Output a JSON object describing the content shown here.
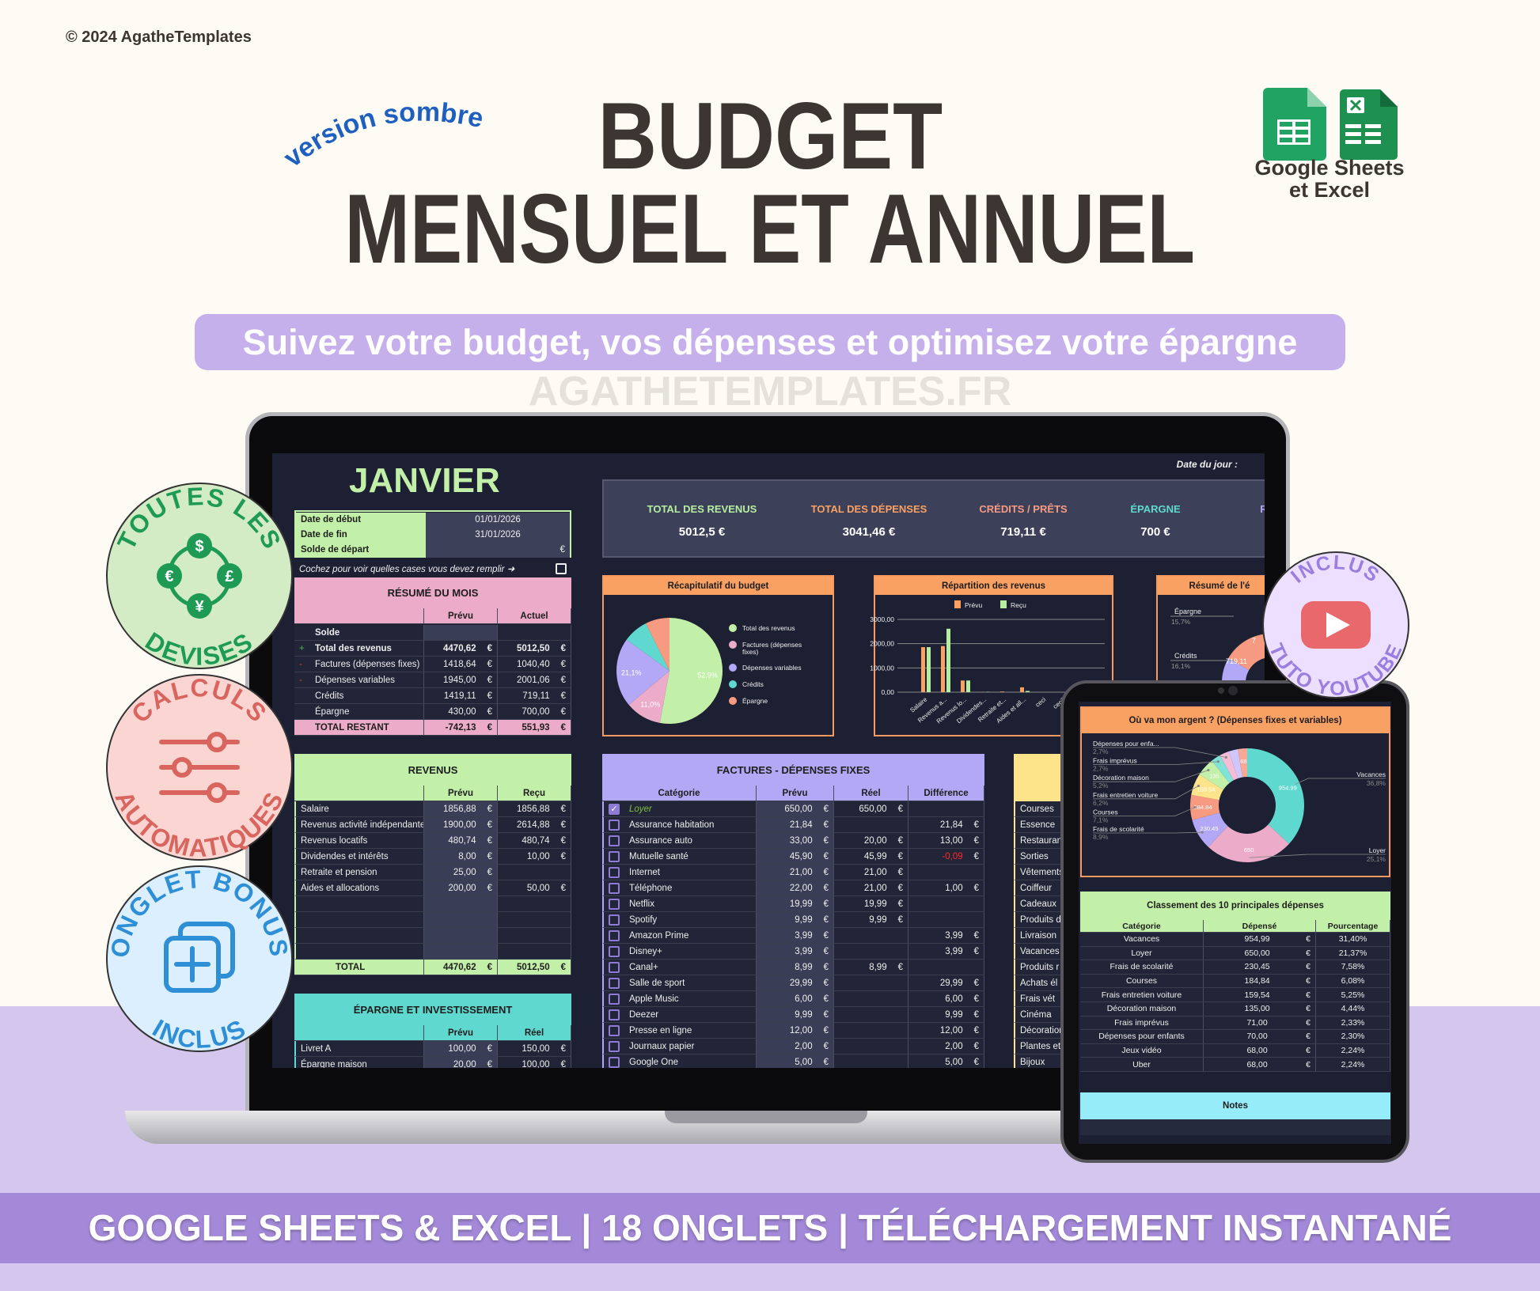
{
  "copyright": "© 2024 AgatheTemplates",
  "tagline_curved": "version sombre",
  "title_line1": "BUDGET",
  "title_line2": "MENSUEL ET ANNUEL",
  "logos_text": [
    "Google Sheets",
    "et Excel"
  ],
  "subtitle": "Suivez votre budget, vos dépenses et optimisez votre épargne",
  "banner": "GOOGLE SHEETS & EXCEL | 18 ONGLETS | TÉLÉCHARGEMENT INSTANTANÉ",
  "watermark": "AGATHETEMPLATES.FR",
  "badges": [
    {
      "top": "TOUTES LES",
      "bottom": "DEVISES",
      "icon": "currency-exchange-icon",
      "bg": "#d3ecc6",
      "fg": "#1f9a55",
      "symbols": [
        "$",
        "€",
        "£",
        "¥"
      ]
    },
    {
      "top": "CALCULS",
      "bottom": "AUTOMATIQUES",
      "icon": "sliders-icon",
      "bg": "#fbd5d2",
      "fg": "#d9655f"
    },
    {
      "top": "ONGLET BONUS",
      "bottom": "INCLUS",
      "icon": "add-copy-icon",
      "bg": "#dcefff",
      "fg": "#2e8fd6"
    },
    {
      "top": "INCLUS",
      "bottom": "TUTO YOUTUBE",
      "icon": "youtube-play-icon",
      "bg": "#ecdfff",
      "fg": "#9b7ee0"
    }
  ],
  "colors": {
    "sheet_bg": "#1d2032",
    "green": "#c3f0a8",
    "pink": "#ecacc9",
    "lavender": "#b3a8f5",
    "teal": "#5fd9cf",
    "orange": "#f9a063",
    "yellow": "#fde48a",
    "cyan": "#96ecf8"
  },
  "sheet": {
    "month": "JANVIER",
    "date_today_label": "Date du jour :",
    "dates": [
      {
        "label": "Date de début",
        "value": "01/01/2026"
      },
      {
        "label": "Date de fin",
        "value": "31/01/2026"
      },
      {
        "label": "Solde de départ",
        "value": "",
        "unit": "€"
      }
    ],
    "hint": "Cochez pour voir quelles cases vous devez remplir ➜",
    "currency": "€",
    "resume": {
      "title": "RÉSUMÉ DU MOIS",
      "cols": [
        "Prévu",
        "Actuel"
      ],
      "rows": [
        [
          "",
          "Solde",
          "",
          ""
        ],
        [
          "+",
          "Total des revenus",
          "4470,62",
          "5012,50"
        ],
        [
          "-",
          "Factures (dépenses fixes)",
          "1418,64",
          "1040,40"
        ],
        [
          "-",
          "Dépenses variables",
          "1945,00",
          "2001,06"
        ],
        [
          "",
          "Crédits",
          "1419,11",
          "719,11"
        ],
        [
          "",
          "Épargne",
          "430,00",
          "700,00"
        ]
      ],
      "total": [
        "TOTAL RESTANT",
        "-742,13",
        "551,93"
      ]
    },
    "kpis": [
      {
        "label": "TOTAL DES REVENUS",
        "value": "5012,5 €",
        "color": "#b5eea0"
      },
      {
        "label": "TOTAL DES DÉPENSES",
        "value": "3041,46 €",
        "color": "#f9a063"
      },
      {
        "label": "CRÉDITS / PRÊTS",
        "value": "719,11 €",
        "color": "#f79a82"
      },
      {
        "label": "ÉPARGNE",
        "value": "700 €",
        "color": "#5fd9cf"
      },
      {
        "label": "R",
        "value": "",
        "color": "#b3a8f5"
      }
    ],
    "revenus": {
      "title": "REVENUS",
      "cols": [
        "Prévu",
        "Reçu"
      ],
      "rows": [
        [
          "Salaire",
          "1856,88",
          "1856,88"
        ],
        [
          "Revenus activité indépendante",
          "1900,00",
          "2614,88"
        ],
        [
          "Revenus locatifs",
          "480,74",
          "480,74"
        ],
        [
          "Dividendes et intérêts",
          "8,00",
          "10,00"
        ],
        [
          "Retraite et pension",
          "25,00",
          ""
        ],
        [
          "Aides et allocations",
          "200,00",
          "50,00"
        ],
        [
          "",
          "",
          ""
        ],
        [
          "",
          "",
          ""
        ],
        [
          "",
          "",
          ""
        ],
        [
          "",
          "",
          ""
        ]
      ],
      "total": [
        "TOTAL",
        "4470,62",
        "5012,50"
      ]
    },
    "epargne": {
      "title": "ÉPARGNE ET INVESTISSEMENT",
      "cols": [
        "Prévu",
        "Réel"
      ],
      "rows": [
        [
          "Livret A",
          "100,00",
          "150,00"
        ],
        [
          "Épargne maison",
          "20,00",
          "100,00"
        ]
      ]
    },
    "factures": {
      "title": "FACTURES - DÉPENSES FIXES",
      "cols": [
        "Catégorie",
        "Prévu",
        "Réel",
        "Différence"
      ],
      "rows": [
        [
          true,
          "Loyer",
          "650,00",
          "650,00",
          ""
        ],
        [
          false,
          "Assurance habitation",
          "21,84",
          "",
          "21,84"
        ],
        [
          false,
          "Assurance auto",
          "33,00",
          "20,00",
          "13,00"
        ],
        [
          false,
          "Mutuelle santé",
          "45,90",
          "45,99",
          "-0,09"
        ],
        [
          false,
          "Internet",
          "21,00",
          "21,00",
          ""
        ],
        [
          false,
          "Téléphone",
          "22,00",
          "21,00",
          "1,00"
        ],
        [
          false,
          "Netflix",
          "19,99",
          "19,99",
          ""
        ],
        [
          false,
          "Spotify",
          "9,99",
          "9,99",
          ""
        ],
        [
          false,
          "Amazon Prime",
          "3,99",
          "",
          "3,99"
        ],
        [
          false,
          "Disney+",
          "3,99",
          "",
          "3,99"
        ],
        [
          false,
          "Canal+",
          "8,99",
          "8,99",
          ""
        ],
        [
          false,
          "Salle de sport",
          "29,99",
          "",
          "29,99"
        ],
        [
          false,
          "Apple Music",
          "6,00",
          "",
          "6,00"
        ],
        [
          false,
          "Deezer",
          "9,99",
          "",
          "9,99"
        ],
        [
          false,
          "Presse en ligne",
          "12,00",
          "",
          "12,00"
        ],
        [
          false,
          "Journaux papier",
          "2,00",
          "",
          "2,00"
        ],
        [
          false,
          "Google One",
          "5,00",
          "",
          "5,00"
        ]
      ]
    },
    "variables": [
      "Courses",
      "Essence",
      "Restaurant",
      "Sorties",
      "Vêtements",
      "Coiffeur",
      "Cadeaux",
      "Produits d",
      "Livraison",
      "Vacances",
      "Produits r",
      "Achats él",
      "Frais vét",
      "Cinéma",
      "Décoration",
      "Plantes et",
      "Bijoux"
    ]
  },
  "tablet": {
    "donut_title": "Où va mon argent ? (Dépenses fixes et variables)",
    "ranking_title": "Classement des 10 principales dépenses",
    "ranking_cols": [
      "Catégorie",
      "Dépensé",
      "Pourcentage"
    ],
    "ranking": [
      [
        "Vacances",
        "954,99",
        "31,40%"
      ],
      [
        "Loyer",
        "650,00",
        "21,37%"
      ],
      [
        "Frais de scolarité",
        "230,45",
        "7,58%"
      ],
      [
        "Courses",
        "184,84",
        "6,08%"
      ],
      [
        "Frais entretien voiture",
        "159,54",
        "5,25%"
      ],
      [
        "Décoration maison",
        "135,00",
        "4,44%"
      ],
      [
        "Frais imprévus",
        "71,00",
        "2,33%"
      ],
      [
        "Dépenses pour enfants",
        "70,00",
        "2,30%"
      ],
      [
        "Jeux vidéo",
        "68,00",
        "2,24%"
      ],
      [
        "Uber",
        "68,00",
        "2,24%"
      ]
    ],
    "notes_title": "Notes"
  },
  "chart_data": [
    {
      "type": "pie",
      "title": "Récapitulatif du budget",
      "categories": [
        "Total des revenus",
        "Factures (dépenses fixes)",
        "Dépenses variables",
        "Crédits",
        "Épargne"
      ],
      "values": [
        5012.5,
        1040.4,
        2001.06,
        719.11,
        700
      ],
      "labels": [
        "52,9%",
        "11,0%",
        "21,1%",
        "",
        ""
      ],
      "colors": [
        "#c3f0a8",
        "#ecacc9",
        "#b3a8f5",
        "#5fd9cf",
        "#f79a82"
      ],
      "legend": "right"
    },
    {
      "type": "bar",
      "title": "Répartition des revenus",
      "categories": [
        "Salaire",
        "Revenus a...",
        "Revenus lo...",
        "Dividendes...",
        "Retraite et...",
        "Aides et all...",
        "ceci",
        "cecili"
      ],
      "series": [
        {
          "name": "Prévu",
          "values": [
            1856.88,
            1900,
            480.74,
            8,
            25,
            200,
            0,
            0
          ],
          "color": "#f9a063"
        },
        {
          "name": "Reçu",
          "values": [
            1856.88,
            2614.88,
            480.74,
            10,
            0,
            50,
            0,
            0
          ],
          "color": "#b5eea0"
        }
      ],
      "yticks": [
        "0,00",
        "1000,00",
        "2000,00",
        "3000,00"
      ],
      "ylim": [
        0,
        3000
      ],
      "grid": true,
      "legend": "top"
    },
    {
      "type": "pie",
      "title": "Résumé de l'é",
      "categories": [
        "Épargne",
        "Crédits"
      ],
      "labels": [
        "15,7%",
        "16,1%"
      ],
      "slice_labels": [
        "7",
        "719,11"
      ],
      "colors": [
        "#f79a82",
        "#b3a8f5"
      ]
    },
    {
      "type": "pie",
      "title": "Où va mon argent ? (Dépenses fixes et variables)",
      "donut": true,
      "categories": [
        "Vacances",
        "Loyer",
        "Frais de scolarité",
        "Courses",
        "Frais entretien voiture",
        "Décoration maison",
        "Frais imprévus",
        "Dépenses pour enfa...",
        "Jeux vidéo",
        "Uber"
      ],
      "values": [
        954.99,
        650,
        230.45,
        184.84,
        159.54,
        135,
        71,
        70,
        68,
        68
      ],
      "slice_labels": [
        "954.99",
        "650",
        "230.45",
        "184.84",
        "159.54",
        "135",
        "",
        "",
        "",
        "68"
      ],
      "percent_labels": [
        "36,8%",
        "25,1%",
        "8,9%",
        "7,1%",
        "6,2%",
        "5,2%",
        "2,7%",
        "2,7%",
        "",
        ""
      ],
      "colors": [
        "#5fd9cf",
        "#ecacc9",
        "#b3a8f5",
        "#f79a82",
        "#fde48a",
        "#c3f0a8",
        "#7fe3d8",
        "#f4bcd6",
        "#cfc6fb",
        "#f7a896"
      ]
    }
  ]
}
